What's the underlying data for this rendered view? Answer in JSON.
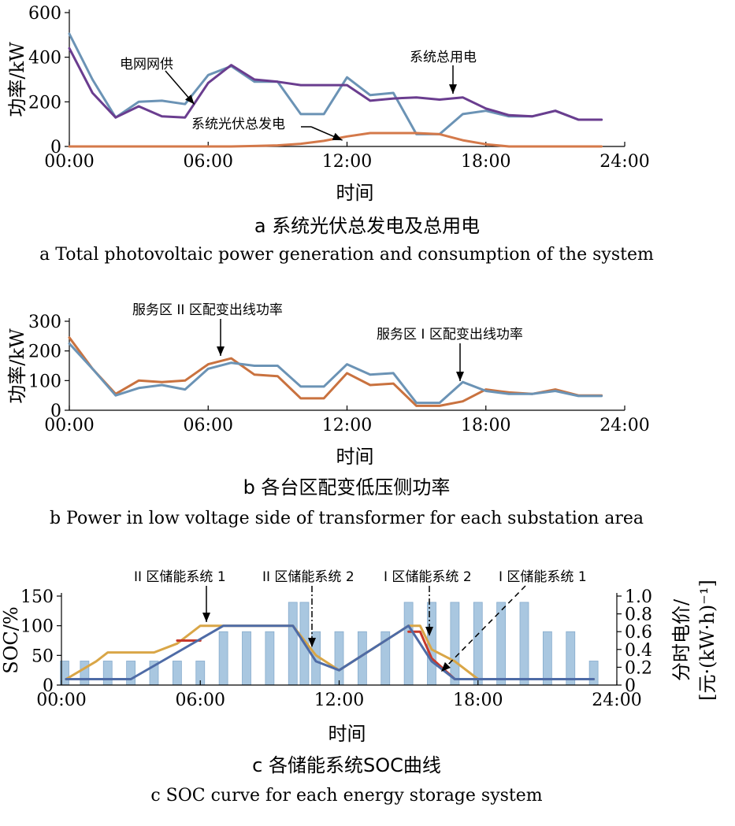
{
  "colors": {
    "grid": "#6b93b5",
    "total": "#6a3d8f",
    "pv": "#d4794a",
    "area2": "#c9723f",
    "area1": "#6b93b5",
    "ess_gold": "#d9a647",
    "ess_red": "#c7392b",
    "ess_blue": "#4e6ba6",
    "price_bar": "#a9c7e0",
    "price_bar_edge": "#86abcc"
  },
  "chart_data": [
    {
      "id": "a",
      "type": "line",
      "xlabel": "时间",
      "ylabel": "功率/kW",
      "xlim": [
        0,
        24
      ],
      "ylim": [
        0,
        600
      ],
      "xticks": [
        0,
        6,
        12,
        18,
        24
      ],
      "xtick_labels": [
        "00:00",
        "06:00",
        "12:00",
        "18:00",
        "24:00"
      ],
      "yticks": [
        0,
        200,
        400,
        600
      ],
      "ytick_labels": [
        "0",
        "200",
        "400",
        "600"
      ],
      "series": [
        {
          "name": "电网网供",
          "color_key": "grid",
          "x": [
            0,
            1,
            2,
            3,
            4,
            5,
            6,
            7,
            8,
            9,
            10,
            11,
            12,
            13,
            14,
            15,
            16,
            17,
            18,
            19,
            20,
            21,
            22,
            23
          ],
          "y": [
            505,
            300,
            130,
            200,
            205,
            190,
            320,
            360,
            290,
            290,
            145,
            145,
            310,
            230,
            240,
            55,
            55,
            145,
            160,
            135,
            135,
            160,
            120,
            120
          ]
        },
        {
          "name": "系统总用电",
          "color_key": "total",
          "x": [
            0,
            1,
            2,
            3,
            4,
            5,
            6,
            7,
            8,
            9,
            10,
            11,
            12,
            13,
            14,
            15,
            16,
            17,
            18,
            19,
            20,
            21,
            22,
            23
          ],
          "y": [
            440,
            240,
            130,
            180,
            135,
            130,
            285,
            365,
            300,
            290,
            275,
            275,
            275,
            205,
            215,
            220,
            210,
            220,
            170,
            140,
            135,
            160,
            120,
            120
          ]
        },
        {
          "name": "系统光伏总发电",
          "color_key": "pv",
          "x": [
            0,
            1,
            2,
            3,
            4,
            5,
            6,
            7,
            8,
            9,
            10,
            11,
            12,
            13,
            14,
            15,
            16,
            17,
            18,
            19,
            20,
            21,
            22,
            23
          ],
          "y": [
            0,
            0,
            0,
            0,
            0,
            0,
            0,
            0,
            2,
            5,
            12,
            25,
            45,
            60,
            60,
            60,
            55,
            28,
            10,
            0,
            0,
            0,
            0,
            0
          ]
        }
      ],
      "annotations": [
        {
          "text": "电网网供",
          "series": 0,
          "x": 5.4
        },
        {
          "text": "系统总用电",
          "series": 1,
          "x": 16.5
        },
        {
          "text": "系统光伏总发电",
          "series": 2,
          "x": 11.6
        }
      ],
      "caption_zh": "a  系统光伏总发电及总用电",
      "caption_en": "a  Total photovoltaic power generation and consumption of the system"
    },
    {
      "id": "b",
      "type": "line",
      "xlabel": "时间",
      "ylabel": "功率/kW",
      "xlim": [
        0,
        24
      ],
      "ylim": [
        0,
        300
      ],
      "xticks": [
        0,
        6,
        12,
        18,
        24
      ],
      "xtick_labels": [
        "00:00",
        "06:00",
        "12:00",
        "18:00",
        "24:00"
      ],
      "yticks": [
        0,
        100,
        200,
        300
      ],
      "ytick_labels": [
        "0",
        "100",
        "200",
        "300"
      ],
      "series": [
        {
          "name": "服务区 II 区配变出线功率",
          "color_key": "area2",
          "x": [
            0,
            1,
            2,
            3,
            4,
            5,
            6,
            7,
            8,
            9,
            10,
            11,
            12,
            13,
            14,
            15,
            16,
            17,
            18,
            19,
            20,
            21,
            22,
            23
          ],
          "y": [
            245,
            140,
            55,
            100,
            95,
            100,
            155,
            175,
            120,
            115,
            40,
            40,
            125,
            85,
            90,
            15,
            15,
            30,
            70,
            60,
            55,
            70,
            50,
            50
          ]
        },
        {
          "name": "服务区 I 区配变出线功率",
          "color_key": "area1",
          "x": [
            0,
            1,
            2,
            3,
            4,
            5,
            6,
            7,
            8,
            9,
            10,
            11,
            12,
            13,
            14,
            15,
            16,
            17,
            18,
            19,
            20,
            21,
            22,
            23
          ],
          "y": [
            225,
            140,
            50,
            75,
            85,
            70,
            140,
            160,
            150,
            150,
            80,
            80,
            155,
            120,
            125,
            25,
            25,
            95,
            65,
            55,
            55,
            65,
            48,
            48
          ]
        }
      ],
      "annotations": [
        {
          "text": "服务区 II 区配变出线功率",
          "series": 0,
          "x": 6.6
        },
        {
          "text": "服务区 I 区配变出线功率",
          "series": 1,
          "x": 16.7
        }
      ],
      "caption_zh": "b  各台区配变低压侧功率",
      "caption_en": "b  Power in low voltage side of transformer for each substation area"
    },
    {
      "id": "c",
      "type": "line+bar",
      "xlabel": "时间",
      "ylabel": "SOC/%",
      "y2label_1": "分时电价/",
      "y2label_2": "[元·(kW·h)⁻¹]",
      "xlim": [
        0,
        24
      ],
      "ylim": [
        0,
        150
      ],
      "y2lim": [
        0,
        1.0
      ],
      "xticks": [
        0,
        6,
        12,
        18,
        24
      ],
      "xtick_labels": [
        "00:00",
        "06:00",
        "12:00",
        "18:00",
        "24:00"
      ],
      "yticks": [
        0,
        50,
        100,
        150
      ],
      "ytick_labels": [
        "0",
        "50",
        "100",
        "150"
      ],
      "y2ticks": [
        0,
        0.2,
        0.4,
        0.6,
        0.8,
        1.0
      ],
      "y2tick_labels": [
        "0",
        "0.2",
        "0.4",
        "0.6",
        "0.8",
        "1.0"
      ],
      "price_bars": {
        "x": [
          0,
          1,
          2,
          3,
          4,
          5,
          6,
          7,
          8,
          9,
          10,
          10.5,
          11,
          12,
          13,
          14,
          15,
          16,
          17,
          18,
          19,
          20,
          21,
          22,
          23
        ],
        "values": [
          0.27,
          0.27,
          0.27,
          0.27,
          0.27,
          0.27,
          0.27,
          0.6,
          0.6,
          0.6,
          0.93,
          0.93,
          0.6,
          0.6,
          0.6,
          0.6,
          0.93,
          0.93,
          0.93,
          0.93,
          0.93,
          0.93,
          0.6,
          0.6,
          0.27
        ]
      },
      "series": [
        {
          "name": "II 区储能系统 1",
          "color_key": "ess_gold",
          "x": [
            0.2,
            1.5,
            2,
            4,
            5,
            6,
            7,
            10,
            11,
            12,
            15,
            15.5,
            16,
            17,
            18,
            23
          ],
          "y": [
            10,
            40,
            55,
            55,
            70,
            100,
            100,
            100,
            50,
            25,
            100,
            100,
            60,
            40,
            10,
            10
          ]
        },
        {
          "name": "II 区储能系统 2",
          "color_key": "ess_red",
          "x": [
            5,
            6
          ],
          "y": [
            75,
            75
          ]
        },
        {
          "name": "I 区储能系统 2",
          "color_key": "ess_red",
          "x": [
            15,
            15.5,
            16,
            17,
            18
          ],
          "y": [
            90,
            90,
            45,
            10,
            10
          ]
        },
        {
          "name": "I 区储能系统 1",
          "color_key": "ess_blue",
          "x": [
            0.2,
            3,
            7,
            10,
            11,
            12,
            15,
            16,
            17,
            23
          ],
          "y": [
            10,
            10,
            100,
            100,
            40,
            25,
            100,
            40,
            10,
            10
          ]
        }
      ],
      "annotations": [
        {
          "text": "II 区储能系统 1",
          "x": 6.0,
          "style": "solid"
        },
        {
          "text": "II 区储能系统 2",
          "x": 10.6,
          "style": "dashdot"
        },
        {
          "text": "I 区储能系统 2",
          "x": 15.6,
          "style": "dashdot"
        },
        {
          "text": "I 区储能系统  1",
          "x": 16.1,
          "style": "dashed"
        }
      ],
      "caption_zh": "c  各储能系统SOC曲线",
      "caption_en": "c  SOC curve for each energy storage system"
    }
  ]
}
